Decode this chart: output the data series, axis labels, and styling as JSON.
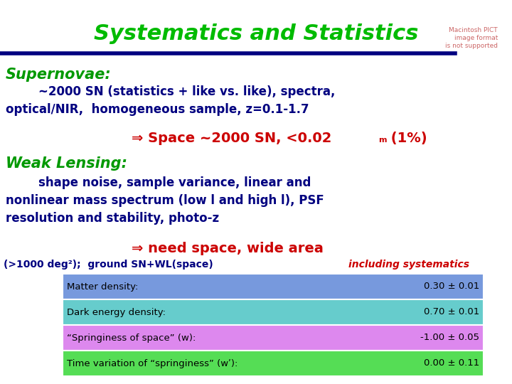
{
  "title": "Systematics and Statistics",
  "title_color": "#00bb00",
  "title_fontsize": 22,
  "bg_color": "#ffffff",
  "blue_line_color": "#000080",
  "macintosh_text": "Macintosh PICT\nimage format\nis not supported",
  "macintosh_color": "#cc6666",
  "macintosh_fontsize": 6.5,
  "section1_label": "Supernovae:",
  "section1_color": "#009900",
  "section1_fontsize": 15,
  "section1_indent": "        ~2000 SN (statistics + like vs. like), spectra,\noptical/NIR,  homogeneous sample, z=0.1-1.7",
  "section1_body_color": "#000080",
  "section1_body_fontsize": 12,
  "section1_arrow_text": "⇒ Space ~2000 SN, <0.02",
  "section1_arrow_sup": "m",
  "section1_arrow_tail": " (1%)",
  "section1_arrow_color": "#cc0000",
  "section1_arrow_fontsize": 14,
  "section2_label": "Weak Lensing:",
  "section2_color": "#009900",
  "section2_fontsize": 15,
  "section2_body": "        shape noise, sample variance, linear and\nnonlinear mass spectrum (low l and high l), PSF\nresolution and stability, photo-z",
  "section2_body_color": "#000080",
  "section2_body_fontsize": 12,
  "section2_arrow_text": "⇒ need space, wide area",
  "section2_arrow_color": "#cc0000",
  "section2_arrow_fontsize": 14,
  "overlap_text": "(>1000 deg²);  ground SN+WL(space) ",
  "overlap_italic": "including systematics",
  "overlap_color": "#000080",
  "overlap_italic_color": "#cc0000",
  "overlap_fontsize": 10,
  "table_rows": [
    {
      "label": "Matter density:",
      "value": "0.30 ± 0.01",
      "bg": "#7799dd"
    },
    {
      "label": "Dark energy density:",
      "value": "0.70 ± 0.01",
      "bg": "#66cccc"
    },
    {
      "label": "“Springiness of space” (w):",
      "value": "-1.00 ± 0.05",
      "bg": "#dd88ee"
    },
    {
      "label": "Time variation of “springiness” (wʹ):",
      "value": "0.00 ± 0.11",
      "bg": "#55dd55"
    }
  ],
  "table_fontsize": 9.5,
  "table_text_color": "#000000"
}
